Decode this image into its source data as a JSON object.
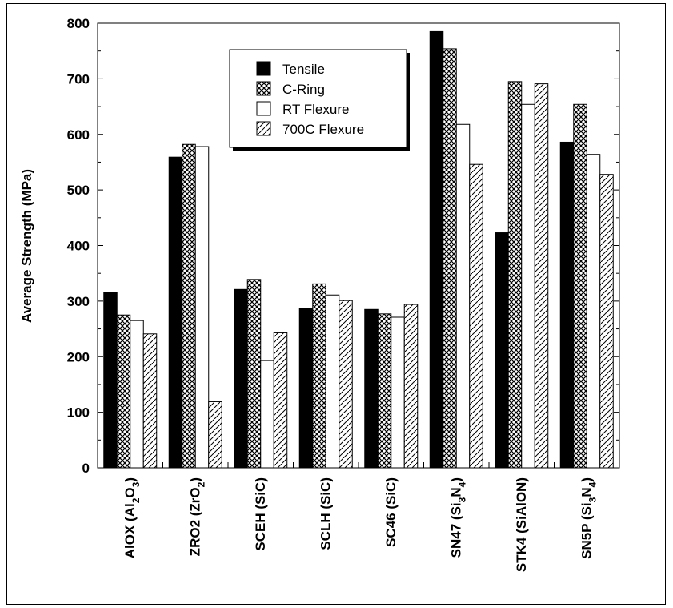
{
  "chart_data": {
    "type": "bar",
    "ylabel": "Average Strength (MPa)",
    "xlabel": "",
    "ylim": [
      0,
      800
    ],
    "yticks": [
      0,
      100,
      200,
      300,
      400,
      500,
      600,
      700,
      800
    ],
    "categories": [
      {
        "main": "AlOX (Al",
        "parts": [
          [
            "O",
            "2"
          ],
          [
            ")",
            "3"
          ]
        ],
        "label": "AlOX (Al2O3)"
      },
      {
        "main": "ZRO2 (ZrO",
        "parts": [
          [
            ")",
            "2"
          ]
        ],
        "label": "ZRO2 (ZrO2)"
      },
      {
        "main": "SCEH (SiC)",
        "parts": [],
        "label": "SCEH (SiC)"
      },
      {
        "main": "SCLH (SiC)",
        "parts": [],
        "label": "SCLH (SiC)"
      },
      {
        "main": "SC46 (SiC)",
        "parts": [],
        "label": "SC46 (SiC)"
      },
      {
        "main": "SN47 (Si",
        "parts": [
          [
            "N",
            "3"
          ],
          [
            ")",
            "4"
          ]
        ],
        "label": "SN47 (Si3N4)"
      },
      {
        "main": "STK4 (SiAlON)",
        "parts": [],
        "label": "STK4 (SiAlON)"
      },
      {
        "main": "SN5P (Si",
        "parts": [
          [
            "N",
            "3"
          ],
          [
            ")",
            "4"
          ]
        ],
        "label": "SN5P (Si3N4)"
      }
    ],
    "series": [
      {
        "name": "Tensile",
        "fill": "solid",
        "values": [
          315,
          559,
          321,
          287,
          285,
          785,
          423,
          586
        ]
      },
      {
        "name": "C-Ring",
        "fill": "crosshatch",
        "values": [
          275,
          582,
          339,
          331,
          277,
          754,
          695,
          654
        ]
      },
      {
        "name": "RT Flexure",
        "fill": "open",
        "values": [
          265,
          578,
          193,
          311,
          271,
          618,
          654,
          564
        ]
      },
      {
        "name": "700C Flexure",
        "fill": "diagonal",
        "values": [
          241,
          119,
          243,
          301,
          294,
          546,
          691,
          528
        ]
      }
    ],
    "legend_position": "top-left-inside",
    "colors": {
      "ink": "#000000",
      "background": "#ffffff"
    }
  }
}
